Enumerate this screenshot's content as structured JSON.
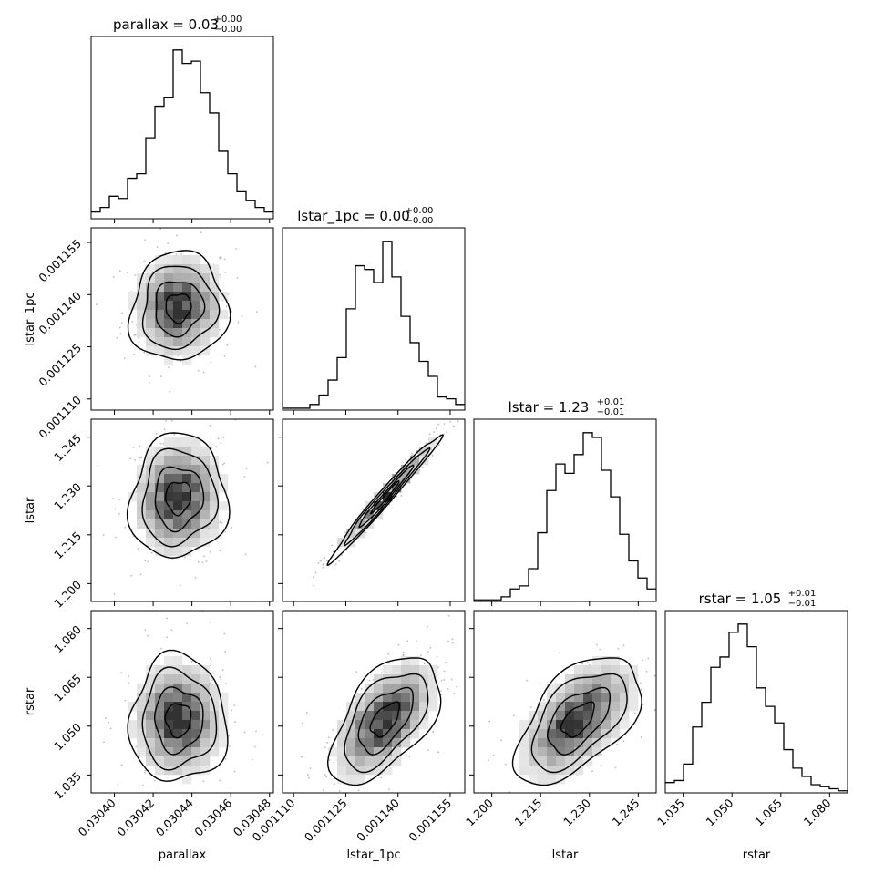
{
  "chart_data": {
    "type": "corner",
    "parameters": [
      "parallax",
      "lstar_1pc",
      "lstar",
      "rstar"
    ],
    "axis_labels": [
      "parallax",
      "lstar_1pc",
      "lstar",
      "rstar"
    ],
    "titles": [
      {
        "param": "parallax",
        "median": "0.03",
        "plus": "+0.00",
        "minus": "−0.00"
      },
      {
        "param": "lstar_1pc",
        "median": "0.00",
        "plus": "+0.00",
        "minus": "−0.00"
      },
      {
        "param": "lstar",
        "median": "1.23",
        "plus": "+0.01",
        "minus": "−0.01"
      },
      {
        "param": "rstar",
        "median": "1.05",
        "plus": "+0.01",
        "minus": "−0.01"
      }
    ],
    "ranges": [
      [
        0.030388,
        0.030482
      ],
      [
        0.0011068,
        0.0011592
      ],
      [
        1.1945,
        1.2505
      ],
      [
        1.0295,
        1.0855
      ]
    ],
    "ticks": [
      {
        "values": [
          0.0304,
          0.03042,
          0.03044,
          0.03046,
          0.03048
        ],
        "labels": [
          "0.03040",
          "0.03042",
          "0.03044",
          "0.03046",
          "0.03048"
        ]
      },
      {
        "values": [
          0.00111,
          0.001125,
          0.00114,
          0.001155
        ],
        "labels": [
          "0.001110",
          "0.001125",
          "0.001140",
          "0.001155"
        ]
      },
      {
        "values": [
          1.2,
          1.215,
          1.23,
          1.245
        ],
        "labels": [
          "1.200",
          "1.215",
          "1.230",
          "1.245"
        ]
      },
      {
        "values": [
          1.035,
          1.05,
          1.065,
          1.08
        ],
        "labels": [
          "1.035",
          "1.050",
          "1.065",
          "1.080"
        ]
      }
    ],
    "histograms": [
      {
        "param": "parallax",
        "counts": [
          3,
          5,
          10,
          9,
          18,
          20,
          36,
          50,
          54,
          75,
          69,
          70,
          56,
          47,
          30,
          20,
          12,
          8,
          5,
          3
        ]
      },
      {
        "param": "lstar_1pc",
        "counts": [
          1,
          1,
          1,
          3,
          8,
          16,
          28,
          54,
          77,
          75,
          68,
          90,
          71,
          50,
          36,
          26,
          18,
          7,
          6,
          3
        ]
      },
      {
        "param": "lstar",
        "counts": [
          1,
          1,
          1,
          3,
          8,
          10,
          21,
          44,
          71,
          88,
          82,
          94,
          108,
          105,
          84,
          67,
          43,
          26,
          15,
          8
        ]
      },
      {
        "param": "rstar",
        "counts": [
          5,
          6,
          14,
          32,
          44,
          61,
          66,
          78,
          82,
          71,
          51,
          42,
          34,
          21,
          12,
          8,
          4,
          3,
          2,
          1
        ]
      }
    ],
    "grid": false,
    "legend": "none"
  }
}
